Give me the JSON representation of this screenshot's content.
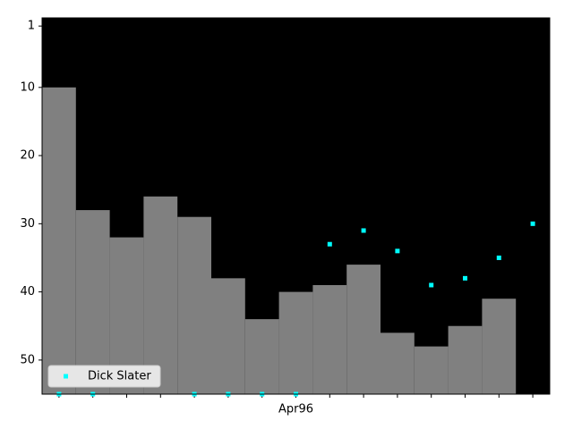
{
  "chart_data": {
    "type": "step-scatter",
    "categories": [
      null,
      null,
      null,
      null,
      null,
      null,
      null,
      "Apr96",
      null,
      null,
      null,
      null,
      null,
      null,
      null
    ],
    "series": [
      {
        "type": "step",
        "color": "#808080",
        "values": [
          10,
          28,
          32,
          26,
          29,
          38,
          44,
          40,
          39,
          36,
          46,
          48,
          45,
          41,
          null
        ]
      },
      {
        "type": "scatter",
        "name": "Dick Slater",
        "color": "#00ffff",
        "values": [
          55,
          55,
          null,
          null,
          55,
          55,
          55,
          55,
          33,
          31,
          34,
          39,
          38,
          35,
          30
        ]
      }
    ],
    "xlim": [
      -0.5,
      14.5
    ],
    "ylim": [
      55,
      -0.2
    ],
    "yticks": [
      1,
      10,
      20,
      30,
      40,
      50
    ],
    "background": "#000000",
    "legend": "lower left"
  }
}
